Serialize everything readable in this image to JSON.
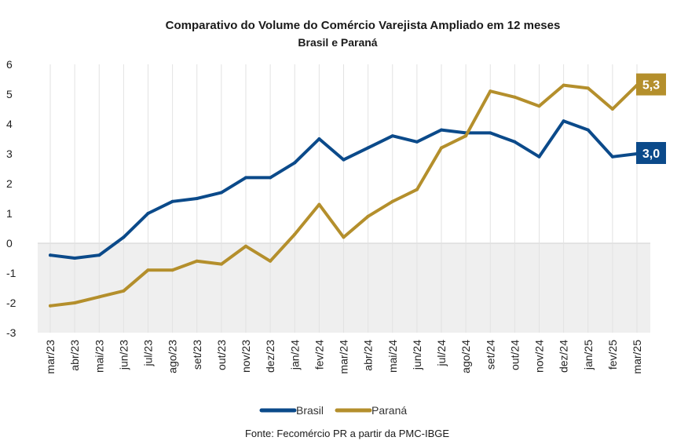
{
  "chart_data": {
    "type": "line",
    "title": "Comparativo do Volume do Comércio Varejista Ampliado em 12 meses",
    "subtitle": "Brasil e Paraná",
    "source": "Fonte: Fecomércio PR a partir da PMC-IBGE",
    "xlabel": "",
    "ylabel": "",
    "ylim": [
      -3,
      6
    ],
    "yticks": [
      "-3",
      "-2",
      "-1",
      "0",
      "1",
      "2",
      "3",
      "4",
      "5",
      "6"
    ],
    "grid": true,
    "legend_position": "bottom",
    "categories": [
      "mar/23",
      "abr/23",
      "mai/23",
      "jun/23",
      "jul/23",
      "ago/23",
      "set/23",
      "out/23",
      "nov/23",
      "dez/23",
      "jan/24",
      "fev/24",
      "mar/24",
      "abr/24",
      "mai/24",
      "jun/24",
      "jul/24",
      "ago/24",
      "set/24",
      "out/24",
      "nov/24",
      "dez/24",
      "jan/25",
      "fev/25",
      "mar/25"
    ],
    "series": [
      {
        "name": "Brasil",
        "color": "#0b4a8a",
        "end_label": "3,0",
        "values": [
          -0.4,
          -0.5,
          -0.4,
          0.2,
          1.0,
          1.4,
          1.5,
          1.7,
          2.2,
          2.2,
          2.7,
          3.5,
          2.8,
          3.2,
          3.6,
          3.4,
          3.8,
          3.7,
          3.7,
          3.4,
          2.9,
          4.1,
          3.8,
          2.9,
          3.0
        ]
      },
      {
        "name": "Paraná",
        "color": "#b48f2c",
        "end_label": "5,3",
        "values": [
          -2.1,
          -2.0,
          -1.8,
          -1.6,
          -0.9,
          -0.9,
          -0.6,
          -0.7,
          -0.1,
          -0.6,
          0.3,
          1.3,
          0.2,
          0.9,
          1.4,
          1.8,
          3.2,
          3.6,
          5.1,
          4.9,
          4.6,
          5.3,
          5.2,
          4.5,
          5.3
        ]
      }
    ]
  }
}
